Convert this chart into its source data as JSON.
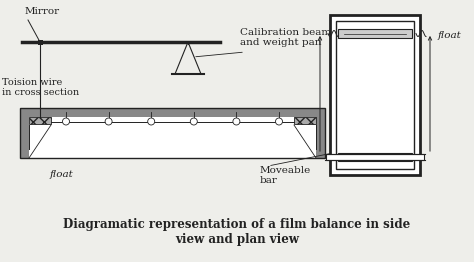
{
  "bg_color": "#eeeeea",
  "line_color": "#222222",
  "title_line1": "Diagramatic representation of a film balance in side",
  "title_line2": "view and plan view",
  "labels": {
    "mirror": "Mirror",
    "calibration": "Calibration beam\nand weight pan",
    "torsion": "Toision wire\nin cross section",
    "float_left": "float",
    "moveable_bar": "Moveable\nbar",
    "float_right": "float"
  },
  "figsize": [
    4.74,
    2.62
  ],
  "dpi": 100
}
